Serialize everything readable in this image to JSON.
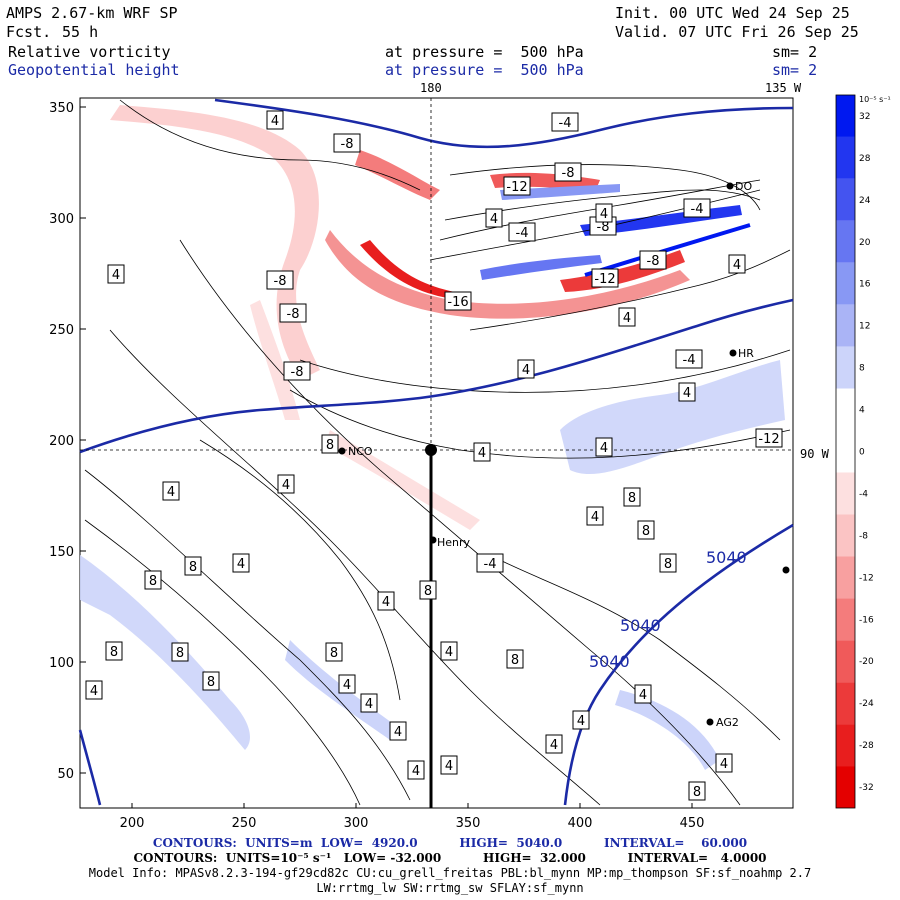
{
  "header": {
    "model": "AMPS 2.67-km WRF SP",
    "fcst_label": "Fcst.",
    "fcst_value": "55 h",
    "init": "Init. 00 UTC Wed 24 Sep 25",
    "valid": "Valid. 07 UTC Fri 26 Sep 25",
    "field1": "Relative vorticity",
    "field2": "Geopotential height",
    "pressure1": "at pressure =  500 hPa",
    "pressure2": "at pressure =  500 hPa",
    "sm1": "sm= 2",
    "sm2": "sm= 2",
    "lon_top_180": "180",
    "lon_top_135": "135 W",
    "lon_right_90": "90 W"
  },
  "axes": {
    "x_ticks": [
      "200",
      "250",
      "300",
      "350",
      "400",
      "450"
    ],
    "y_ticks": [
      "350",
      "300",
      "250",
      "200",
      "150",
      "100",
      "50"
    ]
  },
  "colorbar": {
    "unit": "10⁻⁵ s⁻¹",
    "labels": [
      "32",
      "28",
      "24",
      "20",
      "16",
      "12",
      "8",
      "4",
      "0",
      "-4",
      "-8",
      "-12",
      "-16",
      "-20",
      "-24",
      "-28",
      "-32"
    ],
    "colors": [
      "#0018f0",
      "#2236f0",
      "#4454f0",
      "#6676f2",
      "#8898f4",
      "#aab4f6",
      "#ccd4fa",
      "#ffffff",
      "#ffffff",
      "#fde0e0",
      "#fbc4c4",
      "#f8a0a0",
      "#f47c7c",
      "#f05a5a",
      "#ec3a3a",
      "#e81e1e",
      "#e40000"
    ]
  },
  "stations": [
    "NCO",
    "Henry",
    "AG2",
    "HR",
    "DO"
  ],
  "height_labels": [
    "5040",
    "5040",
    "5040"
  ],
  "vort_labels": {
    "list": [
      "4",
      "-8",
      "-4",
      "-8",
      "-12",
      "-8",
      "4",
      "-4",
      "4",
      "-4",
      "-8",
      "-16",
      "-12",
      "-8",
      "-8",
      "4",
      "4",
      "-8",
      "-4",
      "4",
      "4",
      "4",
      "8",
      "4",
      "-12",
      "4",
      "4",
      "4",
      "8",
      "4",
      "8",
      "8",
      "-4",
      "4",
      "8",
      "8",
      "4",
      "8",
      "8",
      "8",
      "8",
      "4",
      "8",
      "4",
      "8",
      "4",
      "4",
      "4",
      "4",
      "4",
      "4",
      "4",
      "4",
      "4",
      "8"
    ]
  },
  "footer": {
    "line1": "CONTOURS:  UNITS=m  LOW=  4920.0          HIGH=  5040.0          INTERVAL=    60.000",
    "line2": "CONTOURS:  UNITS=10⁻⁵ s⁻¹   LOW= -32.000          HIGH=  32.000          INTERVAL=   4.0000",
    "line3": "Model Info: MPASv8.2.3-194-gf29cd82c CU:cu_grell_freitas PBL:bl_mynn MP:mp_thompson SF:sf_noahmp 2.7",
    "line4": "LW:rrtmg_lw SW:rrtmg_sw SFLAY:sf_mynn"
  }
}
